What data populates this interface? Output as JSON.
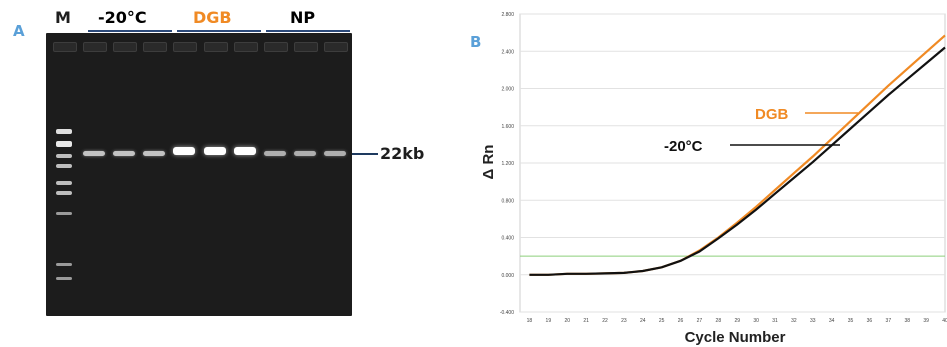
{
  "panel_a": {
    "label": "A",
    "marker_label": "M",
    "groups": [
      {
        "name": "-20°C",
        "color": "#1e1e1e"
      },
      {
        "name": "DGB",
        "color": "#f08a24"
      },
      {
        "name": "NP",
        "color": "#1e1e1e"
      }
    ],
    "band_label": "22kb",
    "band_brightness": [
      0.55,
      0.55,
      0.55,
      1.0,
      1.0,
      1.0,
      0.4,
      0.4,
      0.4
    ]
  },
  "panel_b": {
    "label": "B"
  },
  "chart_data": {
    "type": "line",
    "xlabel": "Cycle Number",
    "ylabel": "Δ Rn",
    "xlim": [
      17.5,
      40
    ],
    "ylim": [
      -0.4,
      2.8
    ],
    "x_ticks": [
      "18",
      "19",
      "20",
      "21",
      "22",
      "23",
      "24",
      "25",
      "26",
      "27",
      "28",
      "29",
      "30",
      "31",
      "32",
      "33",
      "34",
      "35",
      "36",
      "37",
      "38",
      "39",
      "40"
    ],
    "y_ticks": [
      "-0.400",
      "0.000",
      "0.400",
      "0.800",
      "1.200",
      "1.600",
      "2.000",
      "2.400",
      "2.800"
    ],
    "threshold": 0.2,
    "x": [
      18,
      19,
      20,
      21,
      22,
      23,
      24,
      25,
      26,
      27,
      28,
      29,
      30,
      31,
      32,
      33,
      34,
      35,
      36,
      37,
      38,
      39,
      40
    ],
    "series": [
      {
        "name": "DGB",
        "color": "#f08a24",
        "values": [
          0.0,
          0.0,
          0.01,
          0.01,
          0.015,
          0.02,
          0.04,
          0.08,
          0.15,
          0.26,
          0.4,
          0.56,
          0.73,
          0.91,
          1.09,
          1.27,
          1.46,
          1.65,
          1.84,
          2.03,
          2.21,
          2.39,
          2.57
        ]
      },
      {
        "name": "-20°C",
        "color": "#111111",
        "values": [
          0.0,
          0.0,
          0.01,
          0.01,
          0.015,
          0.02,
          0.04,
          0.08,
          0.15,
          0.25,
          0.39,
          0.54,
          0.7,
          0.87,
          1.04,
          1.21,
          1.39,
          1.57,
          1.75,
          1.93,
          2.1,
          2.27,
          2.44
        ]
      }
    ]
  }
}
